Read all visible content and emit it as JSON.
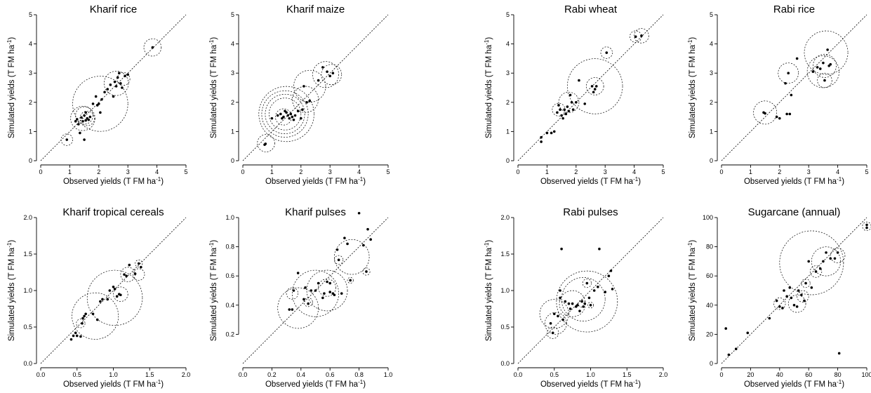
{
  "figure": {
    "ylabel": "Simulated yields (T FM ha",
    "xlabel": "Observed yields (T FM ha",
    "unit_superscript": "-1",
    "unit_close": ")"
  },
  "chart_data": [
    {
      "type": "scatter",
      "title": "Kharif rice",
      "xlabel": "Observed yields (T FM ha-1)",
      "ylabel": "Simulated yields (T FM ha-1)",
      "xlim": [
        0,
        5
      ],
      "ylim": [
        0,
        5
      ],
      "xticks": [
        0,
        1,
        2,
        3,
        4,
        5
      ],
      "yticks": [
        0,
        1,
        2,
        3,
        4,
        5
      ],
      "points": [
        [
          0.9,
          0.72
        ],
        [
          1.2,
          1.35
        ],
        [
          1.25,
          1.42
        ],
        [
          1.3,
          1.25
        ],
        [
          1.35,
          0.95
        ],
        [
          1.4,
          1.48
        ],
        [
          1.45,
          1.35
        ],
        [
          1.5,
          1.55
        ],
        [
          1.5,
          0.72
        ],
        [
          1.55,
          1.38
        ],
        [
          1.6,
          1.45
        ],
        [
          1.65,
          1.4
        ],
        [
          1.7,
          1.5
        ],
        [
          1.55,
          1.65
        ],
        [
          1.8,
          1.95
        ],
        [
          1.9,
          2.2
        ],
        [
          1.95,
          1.9
        ],
        [
          2.0,
          1.95
        ],
        [
          2.05,
          1.65
        ],
        [
          2.1,
          2.1
        ],
        [
          2.2,
          2.35
        ],
        [
          2.3,
          2.45
        ],
        [
          2.4,
          2.6
        ],
        [
          2.5,
          2.2
        ],
        [
          2.55,
          2.7
        ],
        [
          2.6,
          2.55
        ],
        [
          2.65,
          2.85
        ],
        [
          2.7,
          3.0
        ],
        [
          2.75,
          2.65
        ],
        [
          2.8,
          2.5
        ],
        [
          2.9,
          2.9
        ],
        [
          3.0,
          2.95
        ],
        [
          3.85,
          3.88
        ]
      ],
      "circles": [
        [
          0.9,
          0.72,
          0.2
        ],
        [
          1.45,
          1.45,
          0.42
        ],
        [
          1.5,
          1.55,
          0.3
        ],
        [
          1.6,
          1.45,
          0.25
        ],
        [
          2.05,
          1.95,
          0.95
        ],
        [
          2.6,
          2.65,
          0.42
        ],
        [
          2.85,
          2.8,
          0.22
        ],
        [
          3.85,
          3.88,
          0.3
        ]
      ]
    },
    {
      "type": "scatter",
      "title": "Kharif maize",
      "xlabel": "Observed yields (T FM ha-1)",
      "ylabel": "Simulated yields (T FM ha-1)",
      "xlim": [
        0,
        5
      ],
      "ylim": [
        0,
        5
      ],
      "xticks": [
        0,
        1,
        2,
        3,
        4,
        5
      ],
      "yticks": [
        0,
        1,
        2,
        3,
        4,
        5
      ],
      "points": [
        [
          0.75,
          0.55
        ],
        [
          0.78,
          0.58
        ],
        [
          1.0,
          1.45
        ],
        [
          1.2,
          1.55
        ],
        [
          1.3,
          1.6
        ],
        [
          1.35,
          1.45
        ],
        [
          1.4,
          1.5
        ],
        [
          1.45,
          1.7
        ],
        [
          1.5,
          1.65
        ],
        [
          1.55,
          1.55
        ],
        [
          1.6,
          1.45
        ],
        [
          1.65,
          1.6
        ],
        [
          1.7,
          1.5
        ],
        [
          1.75,
          1.4
        ],
        [
          1.8,
          1.55
        ],
        [
          1.9,
          1.7
        ],
        [
          2.0,
          1.45
        ],
        [
          2.05,
          1.75
        ],
        [
          2.1,
          2.55
        ],
        [
          2.2,
          2.0
        ],
        [
          2.3,
          2.05
        ],
        [
          2.6,
          2.75
        ],
        [
          2.75,
          3.2
        ],
        [
          2.9,
          3.05
        ],
        [
          3.0,
          2.9
        ],
        [
          3.1,
          3.0
        ]
      ],
      "circles": [
        [
          0.8,
          0.6,
          0.3
        ],
        [
          1.45,
          1.6,
          0.55
        ],
        [
          1.45,
          1.6,
          0.68
        ],
        [
          1.45,
          1.6,
          0.8
        ],
        [
          1.5,
          1.6,
          0.95
        ],
        [
          1.4,
          1.5,
          0.28
        ],
        [
          2.15,
          2.1,
          0.45
        ],
        [
          2.3,
          2.55,
          0.55
        ],
        [
          2.85,
          2.95,
          0.45
        ],
        [
          3.05,
          2.95,
          0.35
        ]
      ]
    },
    {
      "type": "scatter",
      "title": "Rabi wheat",
      "xlabel": "Observed yields (T FM ha-1)",
      "ylabel": "Simulated yields (T FM ha-1)",
      "xlim": [
        0,
        5
      ],
      "ylim": [
        0,
        5
      ],
      "xticks": [
        0,
        1,
        2,
        3,
        4,
        5
      ],
      "yticks": [
        0,
        1,
        2,
        3,
        4,
        5
      ],
      "points": [
        [
          0.8,
          0.8
        ],
        [
          0.8,
          0.65
        ],
        [
          1.0,
          0.95
        ],
        [
          1.15,
          0.95
        ],
        [
          1.25,
          1.0
        ],
        [
          1.35,
          1.65
        ],
        [
          1.4,
          1.9
        ],
        [
          1.45,
          1.75
        ],
        [
          1.5,
          1.55
        ],
        [
          1.55,
          1.45
        ],
        [
          1.6,
          1.75
        ],
        [
          1.65,
          1.6
        ],
        [
          1.7,
          1.85
        ],
        [
          1.75,
          1.7
        ],
        [
          1.8,
          2.25
        ],
        [
          1.85,
          2.0
        ],
        [
          1.9,
          1.75
        ],
        [
          2.0,
          2.0
        ],
        [
          2.1,
          2.75
        ],
        [
          2.3,
          1.95
        ],
        [
          2.55,
          2.55
        ],
        [
          2.6,
          2.35
        ],
        [
          2.65,
          2.45
        ],
        [
          2.7,
          2.55
        ],
        [
          3.05,
          3.7
        ],
        [
          4.05,
          4.25
        ],
        [
          4.25,
          4.28
        ]
      ],
      "circles": [
        [
          1.4,
          1.75,
          0.22
        ],
        [
          1.75,
          2.0,
          0.35
        ],
        [
          2.65,
          2.55,
          0.95
        ],
        [
          2.65,
          2.55,
          0.3
        ],
        [
          3.05,
          3.7,
          0.2
        ],
        [
          4.05,
          4.25,
          0.2
        ],
        [
          4.25,
          4.28,
          0.25
        ]
      ]
    },
    {
      "type": "scatter",
      "title": "Rabi rice",
      "xlabel": "Observed yields (T FM ha-1)",
      "ylabel": "Simulated yields (T FM ha-1)",
      "xlim": [
        0,
        5
      ],
      "ylim": [
        0,
        5
      ],
      "xticks": [
        0,
        1,
        2,
        3,
        4,
        5
      ],
      "yticks": [
        0,
        1,
        2,
        3,
        4,
        5
      ],
      "points": [
        [
          1.45,
          1.65
        ],
        [
          1.5,
          1.62
        ],
        [
          1.9,
          1.5
        ],
        [
          2.0,
          1.45
        ],
        [
          2.2,
          2.65
        ],
        [
          2.25,
          1.6
        ],
        [
          2.35,
          1.6
        ],
        [
          2.4,
          2.25
        ],
        [
          2.6,
          3.5
        ],
        [
          2.3,
          3.0
        ],
        [
          3.15,
          3.05
        ],
        [
          3.3,
          3.2
        ],
        [
          3.4,
          3.15
        ],
        [
          3.5,
          3.35
        ],
        [
          3.55,
          2.75
        ],
        [
          3.65,
          3.8
        ],
        [
          3.7,
          3.25
        ],
        [
          3.75,
          3.3
        ]
      ],
      "circles": [
        [
          1.5,
          1.65,
          0.4
        ],
        [
          2.3,
          3.0,
          0.35
        ],
        [
          3.5,
          3.05,
          0.55
        ],
        [
          3.55,
          3.25,
          0.4
        ],
        [
          3.6,
          3.7,
          0.75
        ],
        [
          3.55,
          2.75,
          0.25
        ]
      ]
    },
    {
      "type": "scatter",
      "title": "Kharif tropical cereals",
      "xlabel": "Observed yields (T FM ha-1)",
      "ylabel": "Simulated yields (T FM ha-1)",
      "xlim": [
        0,
        2.0
      ],
      "ylim": [
        0,
        2.0
      ],
      "xticks": [
        0.0,
        0.5,
        1.0,
        1.5,
        2.0
      ],
      "yticks": [
        0.0,
        0.5,
        1.0,
        1.5,
        2.0
      ],
      "points": [
        [
          0.42,
          0.33
        ],
        [
          0.45,
          0.38
        ],
        [
          0.48,
          0.42
        ],
        [
          0.5,
          0.38
        ],
        [
          0.55,
          0.37
        ],
        [
          0.57,
          0.55
        ],
        [
          0.58,
          0.62
        ],
        [
          0.6,
          0.65
        ],
        [
          0.62,
          0.68
        ],
        [
          0.72,
          0.68
        ],
        [
          0.78,
          0.6
        ],
        [
          0.82,
          0.85
        ],
        [
          0.85,
          0.88
        ],
        [
          0.92,
          0.88
        ],
        [
          0.95,
          1.0
        ],
        [
          1.0,
          1.05
        ],
        [
          1.02,
          1.02
        ],
        [
          1.05,
          0.92
        ],
        [
          1.08,
          0.95
        ],
        [
          1.1,
          0.94
        ],
        [
          1.15,
          1.22
        ],
        [
          1.18,
          1.2
        ],
        [
          1.22,
          1.35
        ],
        [
          1.3,
          1.23
        ],
        [
          1.35,
          1.37
        ],
        [
          1.38,
          1.32
        ]
      ],
      "circles": [
        [
          0.55,
          0.55,
          0.06
        ],
        [
          0.75,
          0.65,
          0.32
        ],
        [
          1.02,
          0.9,
          0.38
        ],
        [
          1.1,
          0.95,
          0.1
        ],
        [
          1.2,
          1.22,
          0.1
        ],
        [
          1.35,
          1.22,
          0.08
        ],
        [
          1.35,
          1.37,
          0.05
        ]
      ]
    },
    {
      "type": "scatter",
      "title": "Kharif pulses",
      "xlabel": "Observed yields (T FM ha-1)",
      "ylabel": "Simulated yields (T FM ha-1)",
      "xlim": [
        0,
        1.0
      ],
      "ylim": [
        0,
        1.0
      ],
      "xticks": [
        0.0,
        0.2,
        0.4,
        0.6,
        0.8,
        1.0
      ],
      "yticks": [
        0.2,
        0.4,
        0.6,
        0.8,
        1.0
      ],
      "points": [
        [
          0.32,
          0.37
        ],
        [
          0.34,
          0.37
        ],
        [
          0.35,
          0.5
        ],
        [
          0.38,
          0.62
        ],
        [
          0.42,
          0.44
        ],
        [
          0.43,
          0.52
        ],
        [
          0.45,
          0.41
        ],
        [
          0.47,
          0.5
        ],
        [
          0.5,
          0.5
        ],
        [
          0.52,
          0.55
        ],
        [
          0.55,
          0.45
        ],
        [
          0.56,
          0.48
        ],
        [
          0.58,
          0.56
        ],
        [
          0.6,
          0.49
        ],
        [
          0.6,
          0.55
        ],
        [
          0.62,
          0.48
        ],
        [
          0.63,
          0.47
        ],
        [
          0.65,
          0.78
        ],
        [
          0.66,
          0.71
        ],
        [
          0.7,
          0.86
        ],
        [
          0.72,
          0.82
        ],
        [
          0.74,
          0.57
        ],
        [
          0.8,
          1.03
        ],
        [
          0.83,
          0.81
        ],
        [
          0.85,
          0.63
        ],
        [
          0.86,
          0.92
        ],
        [
          0.88,
          0.85
        ],
        [
          0.68,
          0.48
        ]
      ],
      "circles": [
        [
          0.34,
          0.48,
          0.04
        ],
        [
          0.38,
          0.38,
          0.14
        ],
        [
          0.45,
          0.42,
          0.03
        ],
        [
          0.5,
          0.48,
          0.16
        ],
        [
          0.58,
          0.5,
          0.14
        ],
        [
          0.58,
          0.52,
          0.06
        ],
        [
          0.75,
          0.73,
          0.12
        ],
        [
          0.66,
          0.71,
          0.03
        ],
        [
          0.74,
          0.57,
          0.02
        ],
        [
          0.85,
          0.63,
          0.025
        ]
      ]
    },
    {
      "type": "scatter",
      "title": "Rabi pulses",
      "xlabel": "Observed yields (T FM ha-1)",
      "ylabel": "Simulated yields (T FM ha-1)",
      "xlim": [
        0,
        2.0
      ],
      "ylim": [
        0,
        2.0
      ],
      "xticks": [
        0.0,
        0.5,
        1.0,
        1.5,
        2.0
      ],
      "yticks": [
        0.0,
        0.5,
        1.0,
        1.5,
        2.0
      ],
      "points": [
        [
          0.45,
          0.55
        ],
        [
          0.48,
          0.42
        ],
        [
          0.5,
          0.68
        ],
        [
          0.55,
          0.65
        ],
        [
          0.58,
          1.0
        ],
        [
          0.6,
          1.57
        ],
        [
          0.62,
          0.6
        ],
        [
          0.65,
          0.85
        ],
        [
          0.7,
          0.82
        ],
        [
          0.72,
          0.75
        ],
        [
          0.75,
          0.82
        ],
        [
          0.8,
          0.78
        ],
        [
          0.82,
          0.8
        ],
        [
          0.85,
          0.72
        ],
        [
          0.88,
          0.85
        ],
        [
          0.9,
          0.78
        ],
        [
          0.92,
          0.82
        ],
        [
          0.95,
          1.1
        ],
        [
          0.98,
          0.9
        ],
        [
          1.0,
          0.8
        ],
        [
          1.05,
          1.0
        ],
        [
          1.1,
          1.05
        ],
        [
          1.12,
          1.57
        ],
        [
          1.2,
          0.98
        ],
        [
          1.25,
          1.2
        ],
        [
          1.28,
          1.27
        ],
        [
          1.3,
          1.02
        ],
        [
          0.58,
          0.9
        ]
      ],
      "circles": [
        [
          0.5,
          0.68,
          0.2
        ],
        [
          0.52,
          0.55,
          0.15
        ],
        [
          0.48,
          0.42,
          0.08
        ],
        [
          0.75,
          0.82,
          0.18
        ],
        [
          0.9,
          0.88,
          0.3
        ],
        [
          0.95,
          0.85,
          0.42
        ],
        [
          0.95,
          1.1,
          0.06
        ],
        [
          0.88,
          0.82,
          0.05
        ],
        [
          1.0,
          0.8,
          0.04
        ]
      ]
    },
    {
      "type": "scatter",
      "title": "Sugarcane (annual)",
      "xlabel": "Observed yields (T FM ha-1)",
      "ylabel": "Simulated yields (T FM ha-1)",
      "xlim": [
        0,
        100
      ],
      "ylim": [
        0,
        100
      ],
      "xticks": [
        0,
        20,
        40,
        60,
        80,
        100
      ],
      "yticks": [
        0,
        20,
        40,
        60,
        80,
        100
      ],
      "points": [
        [
          3,
          24
        ],
        [
          5,
          6
        ],
        [
          10,
          10
        ],
        [
          18,
          21
        ],
        [
          33,
          31
        ],
        [
          38,
          43
        ],
        [
          40,
          39
        ],
        [
          42,
          38
        ],
        [
          43,
          50
        ],
        [
          45,
          46
        ],
        [
          47,
          52
        ],
        [
          48,
          45
        ],
        [
          50,
          40
        ],
        [
          52,
          39
        ],
        [
          53,
          50
        ],
        [
          55,
          47
        ],
        [
          57,
          43
        ],
        [
          58,
          55
        ],
        [
          60,
          70
        ],
        [
          62,
          52
        ],
        [
          65,
          63
        ],
        [
          68,
          65
        ],
        [
          70,
          70
        ],
        [
          72,
          76
        ],
        [
          75,
          72
        ],
        [
          78,
          72
        ],
        [
          80,
          76
        ],
        [
          81,
          7
        ],
        [
          100,
          95
        ],
        [
          100,
          93
        ]
      ],
      "circles": [
        [
          40,
          41,
          4
        ],
        [
          52,
          41,
          6
        ],
        [
          56,
          46,
          4
        ],
        [
          58,
          55,
          3
        ],
        [
          65,
          63,
          4
        ],
        [
          62,
          69,
          22
        ],
        [
          72,
          70,
          10
        ],
        [
          80,
          74,
          5
        ],
        [
          100,
          94,
          3
        ]
      ]
    }
  ]
}
